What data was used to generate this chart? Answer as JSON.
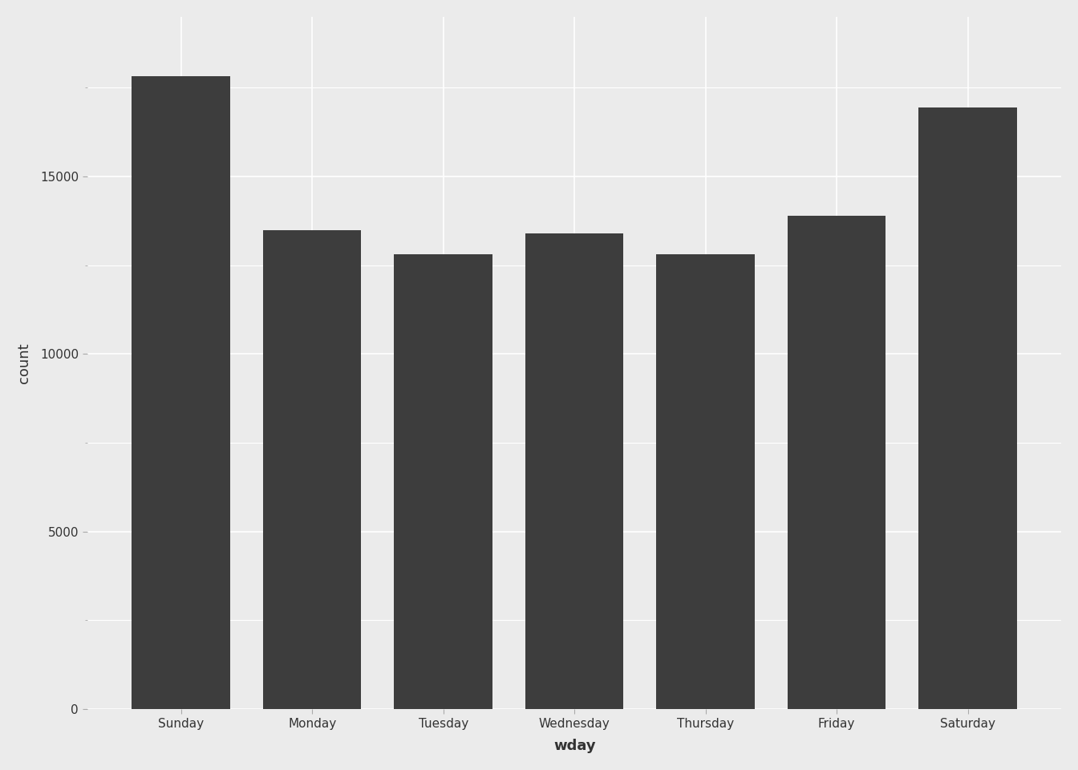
{
  "categories": [
    "Sunday",
    "Monday",
    "Tuesday",
    "Wednesday",
    "Thursday",
    "Friday",
    "Saturday"
  ],
  "values": [
    17830,
    13490,
    12800,
    13390,
    12800,
    13900,
    16950
  ],
  "bar_color": "#3d3d3d",
  "background_color": "#ebebeb",
  "panel_background": "#ebebeb",
  "grid_color": "#ffffff",
  "xlabel": "wday",
  "ylabel": "count",
  "ylim": [
    0,
    19500
  ],
  "yticks": [
    0,
    5000,
    10000,
    15000
  ],
  "xlabel_fontsize": 13,
  "ylabel_fontsize": 13,
  "tick_fontsize": 11,
  "bar_width": 0.75
}
